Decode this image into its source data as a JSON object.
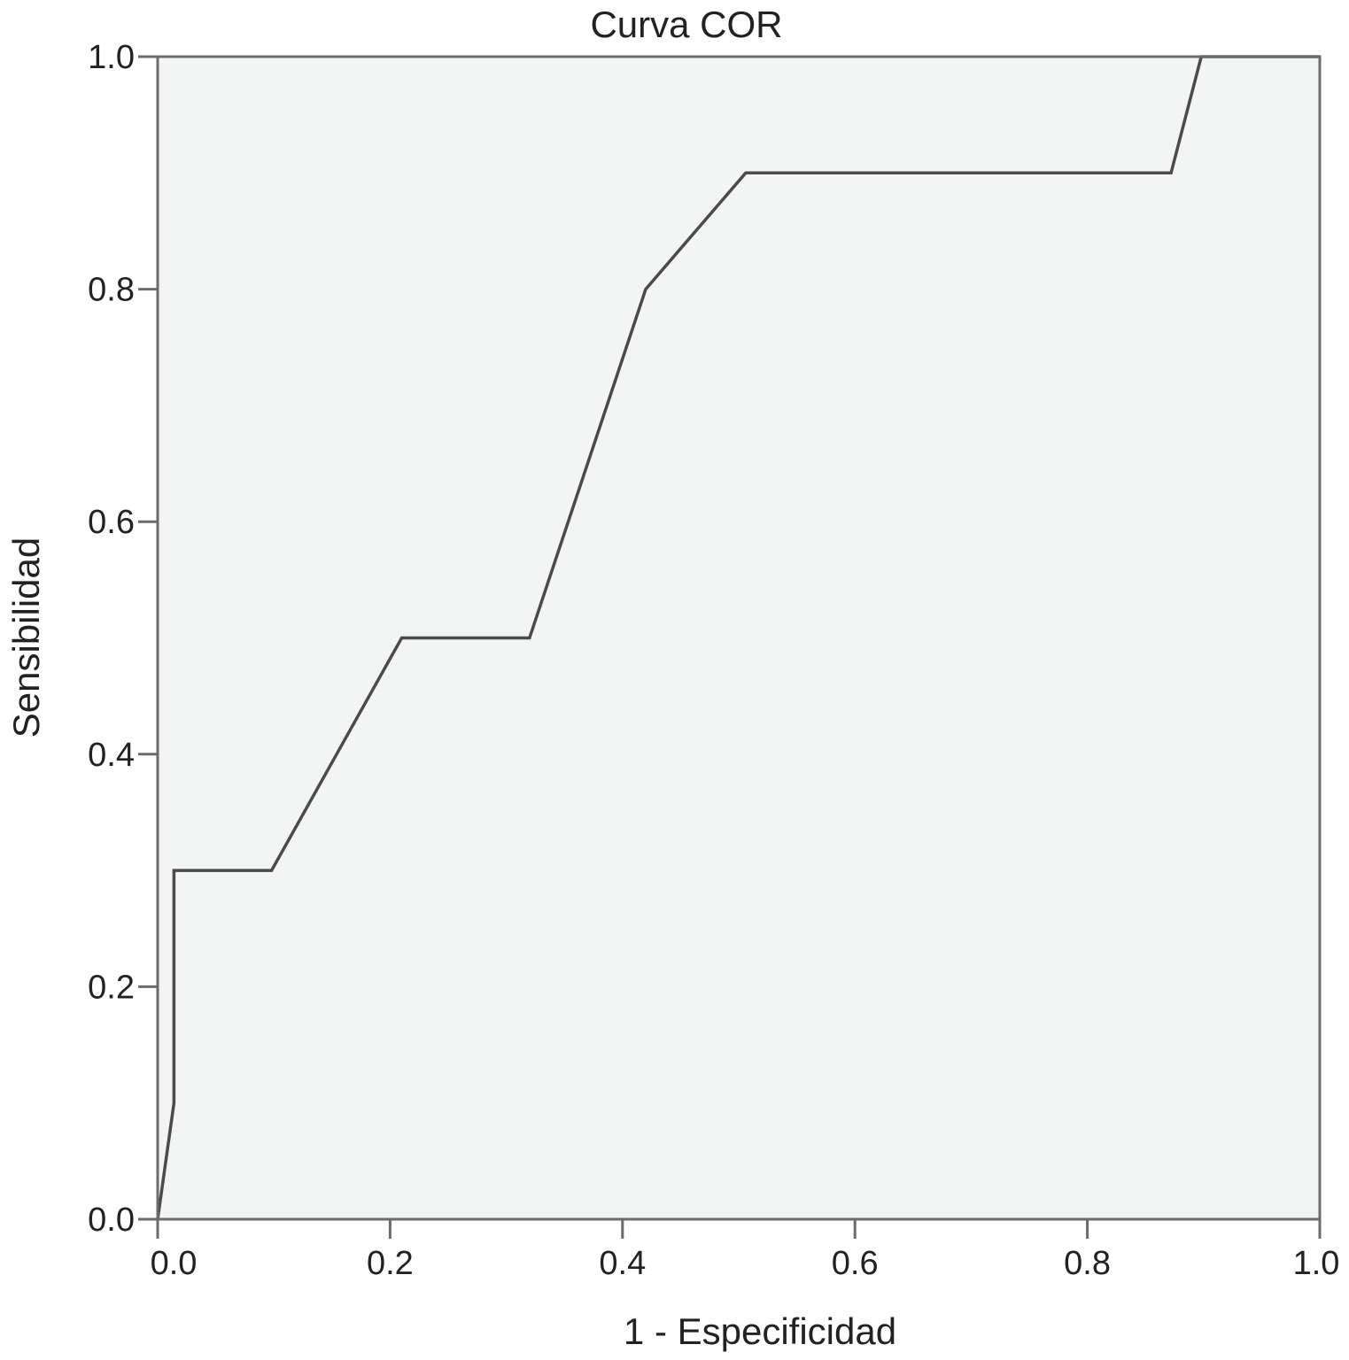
{
  "chart_data": {
    "type": "line",
    "title": "Curva COR",
    "xlabel": "1 - Especificidad",
    "ylabel": "Sensibilidad",
    "xlim": [
      0,
      1
    ],
    "ylim": [
      0,
      1
    ],
    "x_ticks": [
      "0.0",
      "0.2",
      "0.4",
      "0.6",
      "0.8",
      "1.0"
    ],
    "y_ticks": [
      "0.0",
      "0.2",
      "0.4",
      "0.6",
      "0.8",
      "1.0"
    ],
    "grid": false,
    "legend": "none",
    "series": [
      {
        "x": [
          0.0,
          0.014,
          0.014,
          0.098,
          0.21,
          0.32,
          0.42,
          0.506,
          0.872,
          0.898,
          1.0
        ],
        "y": [
          0.0,
          0.1,
          0.3,
          0.3,
          0.5,
          0.5,
          0.8,
          0.9,
          0.9,
          1.0,
          1.0
        ]
      }
    ],
    "colors": {
      "line": "#4a4a4f",
      "plot_background": "#f3f5f4",
      "frame": "#6b6b70",
      "text": "#222222"
    }
  }
}
